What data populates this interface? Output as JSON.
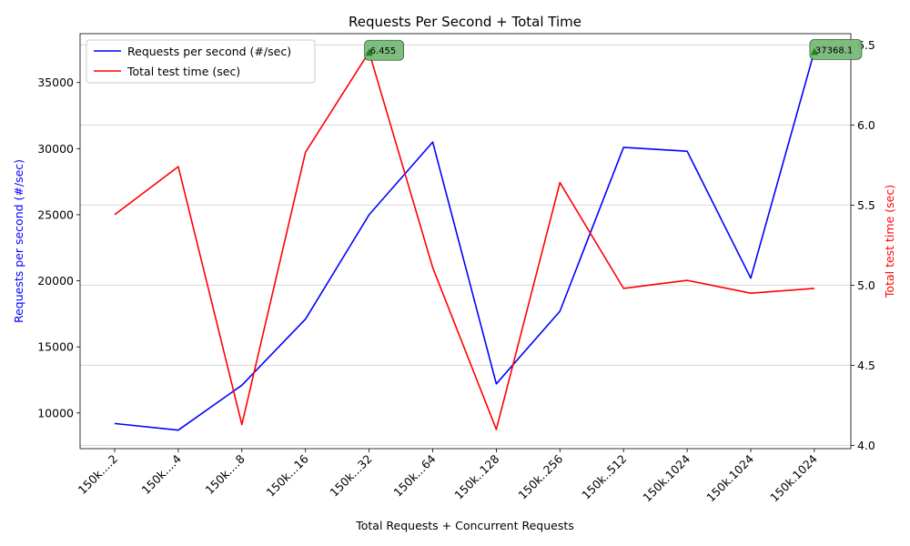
{
  "chart_data": {
    "type": "line",
    "title": "Requests Per Second + Total Time",
    "xlabel": "Total Requests + Concurrent Requests",
    "categories": [
      "150k....2",
      "150k....4",
      "150k....8",
      "150k...16",
      "150k...32",
      "150k...64",
      "150k..128",
      "150k..256",
      "150k..512",
      "150k.1024",
      "150k.1024",
      "150k.1024"
    ],
    "left_axis": {
      "label": "Requests per second (#/sec)",
      "color": "#0000ff",
      "range": [
        7300,
        38700
      ],
      "ticks": [
        10000,
        15000,
        20000,
        25000,
        30000,
        35000
      ]
    },
    "right_axis": {
      "label": "Total test time (sec)",
      "color": "#ff0000",
      "range": [
        3.98,
        6.57
      ],
      "ticks": [
        4.0,
        4.5,
        5.0,
        5.5,
        6.0,
        6.5
      ]
    },
    "series": [
      {
        "name": "Requests per second (#/sec)",
        "axis": "left",
        "color": "#0000ff",
        "values": [
          9200,
          8700,
          12100,
          17100,
          25000,
          30500,
          12200,
          17700,
          30100,
          29800,
          20200,
          37368.1
        ]
      },
      {
        "name": "Total test time (sec)",
        "axis": "right",
        "color": "#ff0000",
        "values": [
          5.44,
          5.74,
          4.13,
          5.83,
          6.455,
          5.11,
          4.1,
          5.64,
          4.98,
          5.03,
          4.95,
          4.98
        ]
      }
    ],
    "annotations": [
      {
        "text": "6.455",
        "series": 1,
        "index": 4
      },
      {
        "text": "37368.1",
        "series": 0,
        "index": 11
      }
    ],
    "annotation_style": {
      "fill": "#78b878",
      "stroke": "#2e6b2e",
      "marker": "#1a8a1a"
    },
    "legend": {
      "position": "top-left"
    },
    "grid": "horizontal-right-axis"
  }
}
